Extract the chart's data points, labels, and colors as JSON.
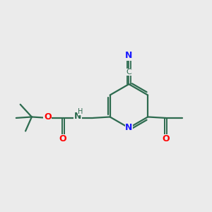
{
  "bg_color": "#ebebeb",
  "bond_color": "#2d6b4f",
  "n_color": "#1a1aff",
  "o_color": "#ff0000",
  "lw": 1.6,
  "figsize": [
    3.0,
    3.0
  ],
  "dpi": 100,
  "xlim": [
    0,
    10
  ],
  "ylim": [
    0,
    10
  ]
}
